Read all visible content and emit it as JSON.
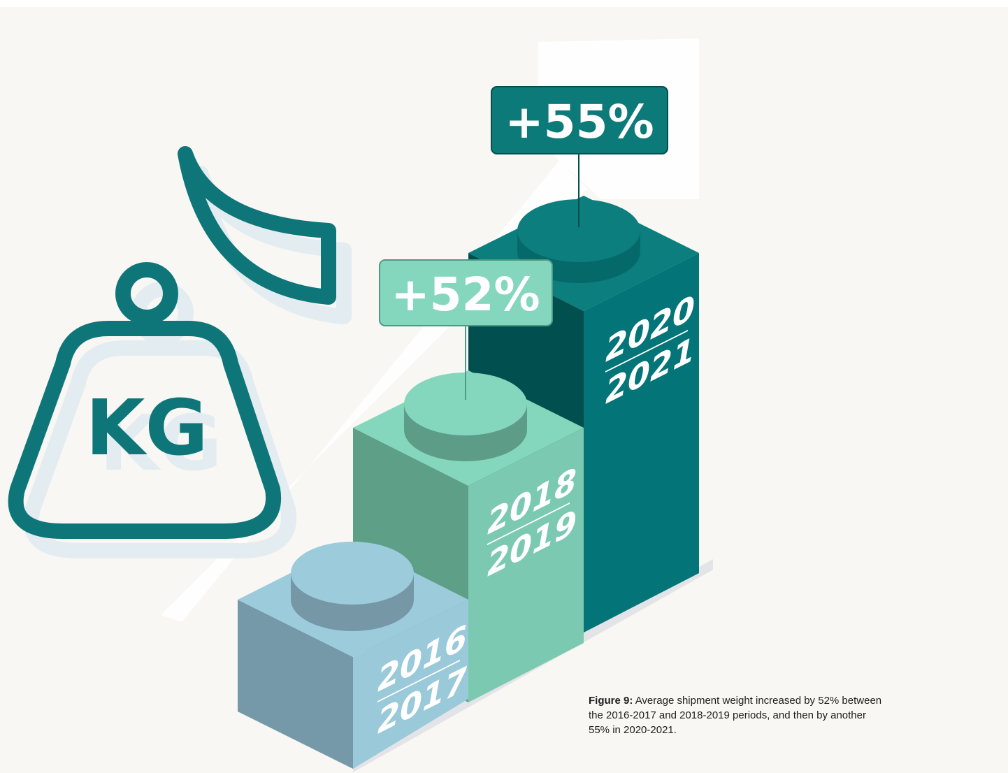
{
  "icon_label": "KG",
  "blocks": [
    {
      "top": "2016",
      "bottom": "2017"
    },
    {
      "top": "2018",
      "bottom": "2019"
    },
    {
      "top": "2020",
      "bottom": "2021"
    }
  ],
  "badges": [
    "+52%",
    "+55%"
  ],
  "caption": {
    "bold": "Figure 9:",
    "text": "Average shipment weight increased by 52% between the 2016-2017 and 2018-2019 periods, and then by another 55% in 2020-2021."
  }
}
